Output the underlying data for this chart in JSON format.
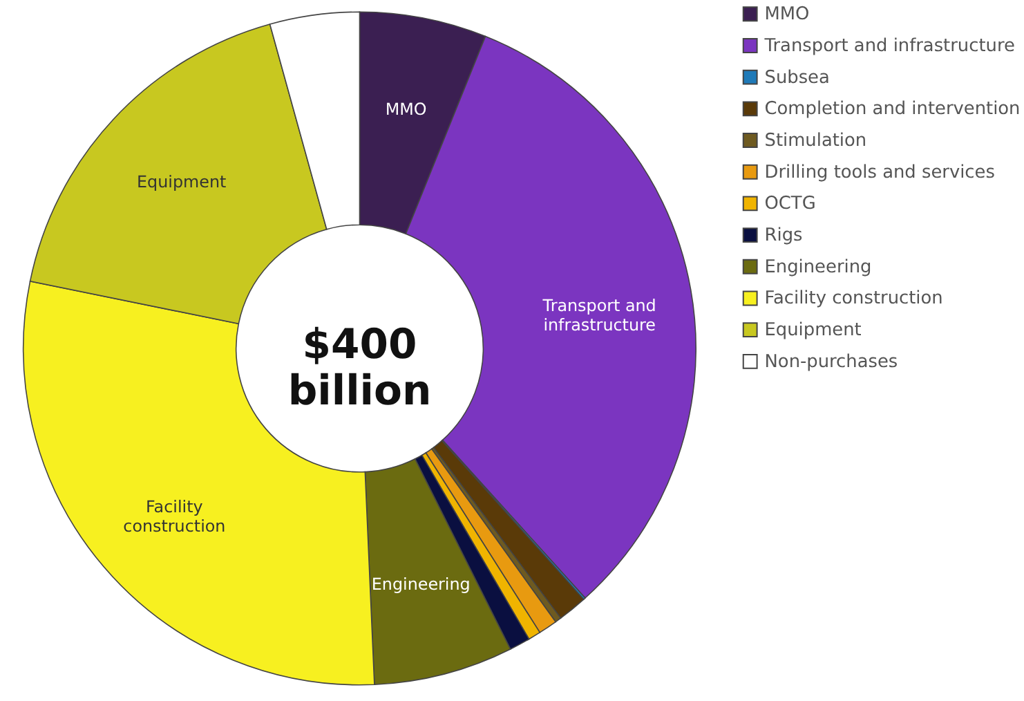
{
  "chart_data": {
    "type": "donut",
    "categories": [
      "MMO",
      "Transport and infrastructure",
      "Subsea",
      "Completion and intervention",
      "Stimulation",
      "Drilling tools and services",
      "OCTG",
      "Rigs",
      "Engineering",
      "Facility construction",
      "Equipment",
      "Non-purchases"
    ],
    "values": [
      6.1,
      32.2,
      0.1,
      1.4,
      0.3,
      0.9,
      0.6,
      1.0,
      6.7,
      28.9,
      17.5,
      4.3
    ],
    "colors": [
      "#3b1f52",
      "#7b35c0",
      "#1f7ab8",
      "#5a3a08",
      "#6e5a20",
      "#e89a10",
      "#f0b400",
      "#0a0f40",
      "#6b6b10",
      "#f7f020",
      "#c8c820",
      "#ffffff"
    ],
    "value_labels": [
      "MMO",
      "Transport and infrastructure",
      null,
      null,
      null,
      null,
      null,
      null,
      "Engineering",
      "Facility construction",
      "Equipment",
      null
    ],
    "annotations": [
      "$400 billion"
    ],
    "legend": "right"
  }
}
